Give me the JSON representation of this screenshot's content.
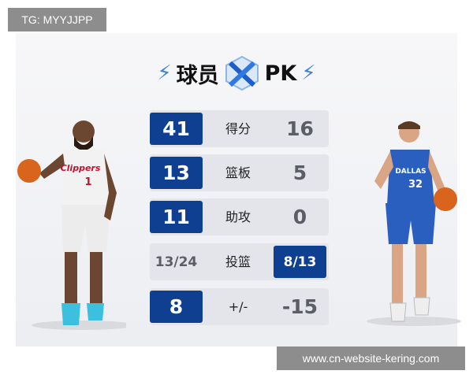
{
  "watermark_top": "TG: MYYJJPP",
  "watermark_bottom": "www.cn-website-kering.com",
  "title": {
    "left": "球员",
    "right": "PK",
    "icon": "crossed-swords-icon"
  },
  "left_player": {
    "jersey_text": "Clippers",
    "number": "1",
    "jersey_color": "#f2f2f2"
  },
  "right_player": {
    "jersey_text": "DALLAS",
    "number": "32",
    "jersey_color": "#2a5fbf"
  },
  "colors": {
    "highlight": "#0e3f91",
    "row_bg": "#e3e5ea"
  },
  "stats": [
    {
      "label": "得分",
      "left": "41",
      "right": "16",
      "winner": "left"
    },
    {
      "label": "篮板",
      "left": "13",
      "right": "5",
      "winner": "left"
    },
    {
      "label": "助攻",
      "left": "11",
      "right": "0",
      "winner": "left"
    },
    {
      "label": "投篮",
      "left": "13/24",
      "right": "8/13",
      "winner": "right"
    },
    {
      "label": "+/-",
      "left": "8",
      "right": "-15",
      "winner": "left"
    }
  ]
}
